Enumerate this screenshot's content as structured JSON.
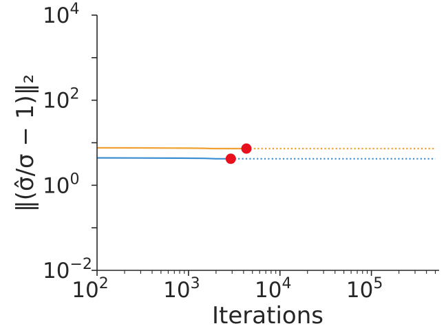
{
  "chart_data": {
    "type": "line",
    "xlabel": "Iterations",
    "ylabel": "‖(σ̂/σ − 1)‖₂",
    "xscale": "log",
    "yscale": "log",
    "xlim": [
      100,
      550000
    ],
    "ylim": [
      0.01,
      10000
    ],
    "xticks": [
      {
        "value": 100,
        "base": "10",
        "exp": "2"
      },
      {
        "value": 1000,
        "base": "10",
        "exp": "3"
      },
      {
        "value": 10000,
        "base": "10",
        "exp": "4"
      },
      {
        "value": 100000,
        "base": "10",
        "exp": "5"
      }
    ],
    "yticks": [
      {
        "value": 0.01,
        "base": "10",
        "exp": "−2"
      },
      {
        "value": 1,
        "base": "10",
        "exp": "0"
      },
      {
        "value": 100,
        "base": "10",
        "exp": "2"
      },
      {
        "value": 10000,
        "base": "10",
        "exp": "4"
      }
    ],
    "grid": false,
    "series": [
      {
        "color": "#f0a030",
        "solid": {
          "x": [
            100,
            300,
            1000,
            1500,
            1800,
            4300
          ],
          "y": [
            7.6,
            7.55,
            7.45,
            7.4,
            7.3,
            7.3
          ]
        },
        "stop": {
          "x": 4300,
          "y": 7.3
        },
        "dotted": {
          "x": [
            4300,
            500000
          ],
          "y": [
            7.3,
            7.3
          ]
        }
      },
      {
        "color": "#3a8dd0",
        "solid": {
          "x": [
            100,
            300,
            800,
            1500,
            2000,
            2900
          ],
          "y": [
            4.4,
            4.38,
            4.35,
            4.3,
            4.2,
            4.2
          ]
        },
        "stop": {
          "x": 2900,
          "y": 4.2
        },
        "dotted": {
          "x": [
            2900,
            500000
          ],
          "y": [
            4.2,
            4.2
          ]
        }
      }
    ],
    "marker_color": "#e8101c"
  }
}
